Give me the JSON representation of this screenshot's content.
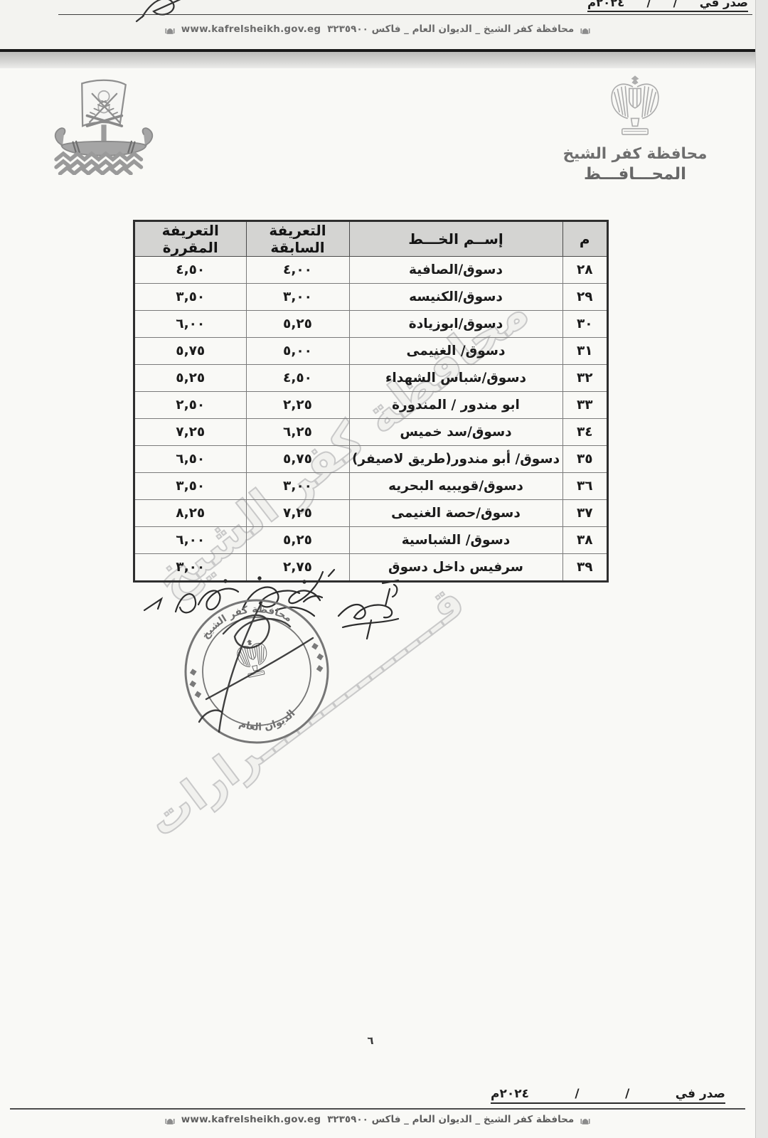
{
  "viewer": {
    "page_number": "٦"
  },
  "issued": {
    "label": "صدر في",
    "slash": "/",
    "year": "٢٠٢٤م"
  },
  "contact": {
    "arabic": "محافظة كفر الشيخ _ الديوان العام _ فاكس ٣٢٣٥٩٠٠",
    "website": "www.kafrelsheikh.gov.eg"
  },
  "letterhead": {
    "governorate": "محافظة كفر الشيخ",
    "office": "المحـــافـــظ"
  },
  "stamp": {
    "top_text": "محافظة كفر الشيخ",
    "bottom_text": "الديوان العام"
  },
  "watermark": {
    "line1": "محافظة كفر الشيخ",
    "line2": "قـــــــــــــــرارات"
  },
  "colors": {
    "table_header_bg": "#d4d4d2",
    "ink": "#1b1b1b",
    "stamp_ink": "#6f6f6f"
  },
  "table": {
    "headers": {
      "index": "م",
      "line_name": "إســم الخـــط",
      "previous_tariff": "التعريفة السابقة",
      "approved_tariff": "التعريفة المقررة"
    },
    "rows": [
      {
        "index": "٢٨",
        "name": "دسوق/الصافية",
        "previous": "٤,٠٠",
        "approved": "٤,٥٠"
      },
      {
        "index": "٢٩",
        "name": "دسوق/الكنيسه",
        "previous": "٣,٠٠",
        "approved": "٣,٥٠"
      },
      {
        "index": "٣٠",
        "name": "دسوق/ابوزيادة",
        "previous": "٥,٢٥",
        "approved": "٦,٠٠"
      },
      {
        "index": "٣١",
        "name": "دسوق/ الغنيمى",
        "previous": "٥,٠٠",
        "approved": "٥,٧٥"
      },
      {
        "index": "٣٢",
        "name": "دسوق/شباس الشهداء",
        "previous": "٤,٥٠",
        "approved": "٥,٢٥"
      },
      {
        "index": "٣٣",
        "name": "ابو مندور / المندورة",
        "previous": "٢,٢٥",
        "approved": "٢,٥٠"
      },
      {
        "index": "٣٤",
        "name": "دسوق/سد خميس",
        "previous": "٦,٢٥",
        "approved": "٧,٢٥"
      },
      {
        "index": "٣٥",
        "name": "دسوق/ أبو مندور(طريق لاصيفر)",
        "previous": "٥,٧٥",
        "approved": "٦,٥٠"
      },
      {
        "index": "٣٦",
        "name": "دسوق/قويبيه البحريه",
        "previous": "٣,٠٠",
        "approved": "٣,٥٠"
      },
      {
        "index": "٣٧",
        "name": "دسوق/حصة الغنيمى",
        "previous": "٧,٢٥",
        "approved": "٨,٢٥"
      },
      {
        "index": "٣٨",
        "name": "دسوق/ الشباسية",
        "previous": "٥,٢٥",
        "approved": "٦,٠٠"
      },
      {
        "index": "٣٩",
        "name": "سرفيس داخل دسوق",
        "previous": "٢,٧٥",
        "approved": "٣,٠٠"
      }
    ]
  }
}
